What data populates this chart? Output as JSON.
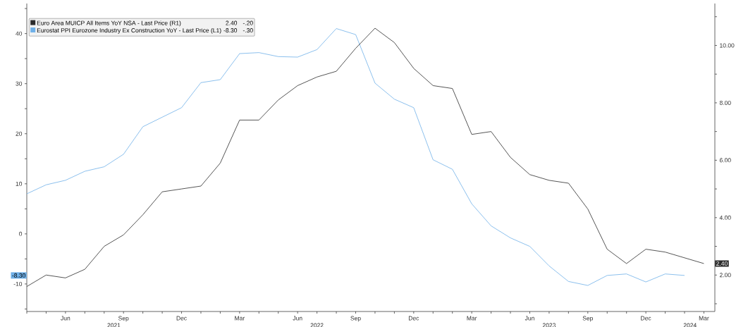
{
  "chart_data": {
    "type": "line",
    "x": [
      "2021-04",
      "2021-05",
      "2021-06",
      "2021-07",
      "2021-08",
      "2021-09",
      "2021-10",
      "2021-11",
      "2021-12",
      "2022-01",
      "2022-02",
      "2022-03",
      "2022-04",
      "2022-05",
      "2022-06",
      "2022-07",
      "2022-08",
      "2022-09",
      "2022-10",
      "2022-11",
      "2022-12",
      "2023-01",
      "2023-02",
      "2023-03",
      "2023-04",
      "2023-05",
      "2023-06",
      "2023-07",
      "2023-08",
      "2023-09",
      "2023-10",
      "2023-11",
      "2023-12",
      "2024-01",
      "2024-02",
      "2024-03"
    ],
    "series": [
      {
        "name": "Euro Area MUICP All Items YoY NSA - Last Price (R1)",
        "color": "#2b2b2b",
        "axis": "y2",
        "values": [
          1.6,
          2.0,
          1.9,
          2.2,
          3.0,
          3.4,
          4.1,
          4.9,
          5.0,
          5.1,
          5.9,
          7.4,
          7.4,
          8.1,
          8.6,
          8.9,
          9.1,
          9.9,
          10.6,
          10.1,
          9.2,
          8.6,
          8.5,
          6.9,
          7.0,
          6.1,
          5.5,
          5.3,
          5.2,
          4.3,
          2.9,
          2.4,
          2.9,
          2.8,
          2.6,
          2.4
        ]
      },
      {
        "name": "Eurostat PPI Eurozone Industry Ex Construction YoY - Last Price (L1)",
        "color": "#6fb0e8",
        "axis": "y",
        "values": [
          8.0,
          9.8,
          10.7,
          12.5,
          13.4,
          15.9,
          21.4,
          23.3,
          25.2,
          30.2,
          30.8,
          36.0,
          36.2,
          35.4,
          35.3,
          36.8,
          41.0,
          39.8,
          30.1,
          26.9,
          25.2,
          14.8,
          12.9,
          6.0,
          1.6,
          -0.8,
          -2.5,
          -6.4,
          -9.5,
          -10.3,
          -8.3,
          -8.0,
          -9.6,
          -8.0,
          -8.3,
          null
        ]
      }
    ],
    "xlim": [
      "2021-04",
      "2024-03-18"
    ],
    "xticks": [
      {
        "value": "2021-04",
        "label": null
      },
      {
        "value": "2021-05",
        "label": null
      },
      {
        "value": "2021-06",
        "label": "Jun"
      },
      {
        "value": "2021-07",
        "label": null
      },
      {
        "value": "2021-08",
        "label": null
      },
      {
        "value": "2021-09",
        "label": "Sep"
      },
      {
        "value": "2021-10",
        "label": null
      },
      {
        "value": "2021-11",
        "label": null
      },
      {
        "value": "2021-12",
        "label": "Dec"
      },
      {
        "value": "2022-01",
        "label": null
      },
      {
        "value": "2022-02",
        "label": null
      },
      {
        "value": "2022-03",
        "label": "Mar"
      },
      {
        "value": "2022-04",
        "label": null
      },
      {
        "value": "2022-05",
        "label": null
      },
      {
        "value": "2022-06",
        "label": "Jun"
      },
      {
        "value": "2022-07",
        "label": null
      },
      {
        "value": "2022-08",
        "label": null
      },
      {
        "value": "2022-09",
        "label": "Sep"
      },
      {
        "value": "2022-10",
        "label": null
      },
      {
        "value": "2022-11",
        "label": null
      },
      {
        "value": "2022-12",
        "label": "Dec"
      },
      {
        "value": "2023-01",
        "label": null
      },
      {
        "value": "2023-02",
        "label": null
      },
      {
        "value": "2023-03",
        "label": "Mar"
      },
      {
        "value": "2023-04",
        "label": null
      },
      {
        "value": "2023-05",
        "label": null
      },
      {
        "value": "2023-06",
        "label": "Jun"
      },
      {
        "value": "2023-07",
        "label": null
      },
      {
        "value": "2023-08",
        "label": null
      },
      {
        "value": "2023-09",
        "label": "Sep"
      },
      {
        "value": "2023-10",
        "label": null
      },
      {
        "value": "2023-11",
        "label": null
      },
      {
        "value": "2023-12",
        "label": "Dec"
      },
      {
        "value": "2024-01",
        "label": null
      },
      {
        "value": "2024-02",
        "label": null
      },
      {
        "value": "2024-03",
        "label": "Mar"
      }
    ],
    "ylim": [
      -15.5,
      46
    ],
    "yticks": [
      {
        "value": -15,
        "label": null
      },
      -10,
      {
        "value": -5,
        "label": null
      },
      0,
      {
        "value": 5,
        "label": null
      },
      10,
      {
        "value": 15,
        "label": null
      },
      20,
      {
        "value": 25,
        "label": null
      },
      30,
      {
        "value": 35,
        "label": null
      },
      40,
      {
        "value": 45,
        "label": null
      }
    ],
    "y2lim": [
      0.73,
      11.46
    ],
    "y2ticks": [
      {
        "value": 1,
        "label": null
      },
      {
        "value": 2,
        "label": "2.00"
      },
      {
        "value": 3,
        "label": null
      },
      {
        "value": 4,
        "label": "4.00"
      },
      {
        "value": 5,
        "label": null
      },
      {
        "value": 6,
        "label": "6.00"
      },
      {
        "value": 7,
        "label": null
      },
      {
        "value": 8,
        "label": "8.00"
      },
      {
        "value": 9,
        "label": null
      },
      {
        "value": 10,
        "label": "10.00"
      },
      {
        "value": 11,
        "label": null
      }
    ],
    "legend": "top left",
    "annotations": [
      "2.40",
      "-.20",
      "-8.30",
      "-.30",
      "2.40",
      "-8.30",
      "2021",
      "2022",
      "2023",
      "2024"
    ]
  }
}
